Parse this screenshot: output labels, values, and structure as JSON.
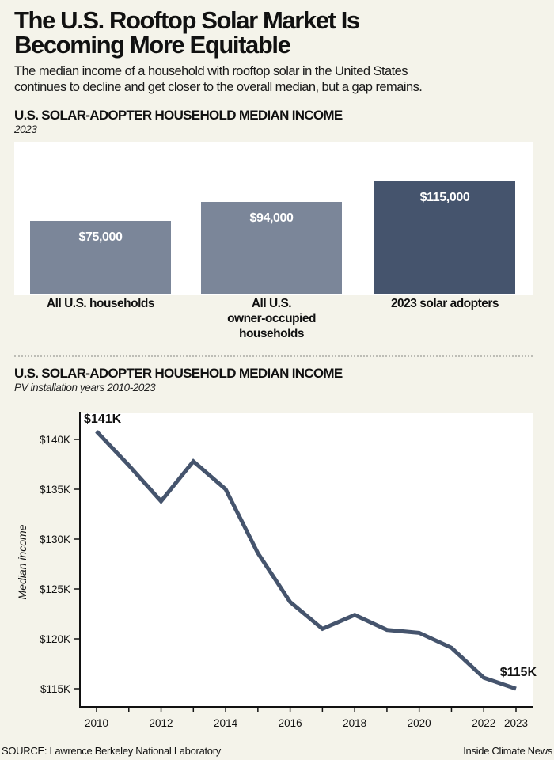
{
  "header": {
    "title_line1": "The U.S. Rooftop Solar Market Is",
    "title_line2": "Becoming More Equitable",
    "subtitle_line1": "The median income of a household with rooftop solar in the United States",
    "subtitle_line2": "continues to decline and get closer to the overall median, but a gap remains."
  },
  "colors": {
    "background": "#f4f3ea",
    "panel": "#ffffff",
    "bar_light": "#7b8699",
    "bar_dark": "#45546d",
    "line": "#45546d",
    "axis": "#111111"
  },
  "chart_data": [
    {
      "type": "bar",
      "title": "U.S. SOLAR-ADOPTER HOUSEHOLD MEDIAN INCOME",
      "subtitle": "2023",
      "categories": [
        [
          "All U.S. households"
        ],
        [
          "All U.S.",
          "owner-occupied",
          "households"
        ],
        [
          "2023 solar adopters"
        ]
      ],
      "values": [
        75000,
        94000,
        115000
      ],
      "value_labels": [
        "$75,000",
        "$94,000",
        "$115,000"
      ],
      "highlight_index": 2,
      "ylim": [
        0,
        130000
      ],
      "xlabel": "",
      "ylabel": ""
    },
    {
      "type": "line",
      "title": "U.S. SOLAR-ADOPTER HOUSEHOLD MEDIAN INCOME",
      "subtitle": "PV installation years 2010-2023",
      "xlabel": "",
      "ylabel": "Median income",
      "x": [
        2010,
        2011,
        2012,
        2013,
        2014,
        2015,
        2016,
        2017,
        2018,
        2019,
        2020,
        2021,
        2022,
        2023
      ],
      "series": [
        {
          "name": "Median income of solar adopters",
          "values": [
            140800,
            137400,
            133800,
            137800,
            135000,
            128600,
            123700,
            121000,
            122400,
            120900,
            120600,
            119100,
            116100,
            115000
          ]
        }
      ],
      "ylim": [
        113200,
        142000
      ],
      "yticks": [
        115000,
        120000,
        125000,
        130000,
        135000,
        140000
      ],
      "ytick_labels": [
        "$115K",
        "$120K",
        "$125K",
        "$130K",
        "$135K",
        "$140K"
      ],
      "xlim": [
        2009.5,
        2023.5
      ],
      "xticks": [
        2010,
        2011,
        2012,
        2013,
        2014,
        2015,
        2016,
        2017,
        2018,
        2019,
        2020,
        2021,
        2022,
        2023
      ],
      "xtick_labels": [
        "2010",
        "",
        "2012",
        "",
        "2014",
        "",
        "2016",
        "",
        "2018",
        "",
        "2020",
        "",
        "2022",
        "2023"
      ],
      "annotations": [
        {
          "x": 2010,
          "label": "$141K"
        },
        {
          "x": 2023,
          "label": "$115K"
        }
      ],
      "grid": false,
      "legend": "none"
    }
  ],
  "footer": {
    "source": "SOURCE: Lawrence Berkeley National Laboratory",
    "credit": "Inside Climate News"
  }
}
